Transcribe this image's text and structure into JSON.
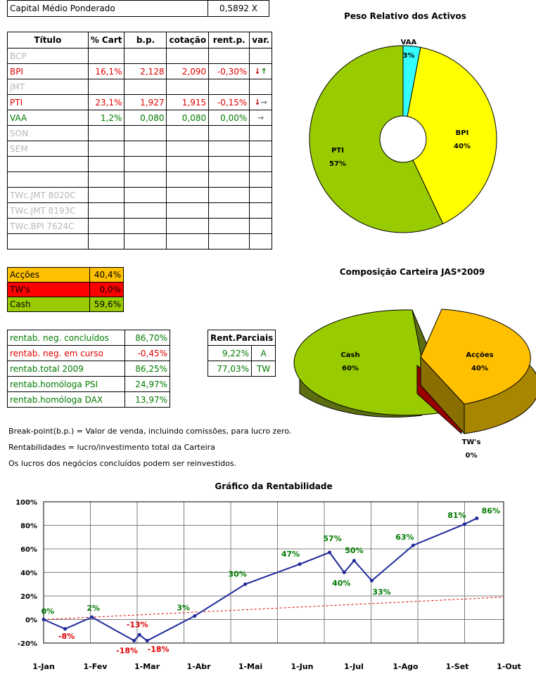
{
  "capital": {
    "label": "Capital Médio Ponderado",
    "value": "0,5892 X"
  },
  "table": {
    "headers": [
      "Título",
      "% Cart",
      "b.p.",
      "cotação",
      "rent.p.",
      "var."
    ],
    "rows": [
      {
        "name": "BCP",
        "cart": "",
        "bp": "",
        "cot": "",
        "rent": "",
        "var": "",
        "style": "grey"
      },
      {
        "name": "BPI",
        "cart": "16,1%",
        "bp": "2,128",
        "cot": "2,090",
        "rent": "-0,30%",
        "var": "↓↑",
        "style": "red"
      },
      {
        "name": "JMT",
        "cart": "",
        "bp": "",
        "cot": "",
        "rent": "",
        "var": "",
        "style": "grey"
      },
      {
        "name": "PTI",
        "cart": "23,1%",
        "bp": "1,927",
        "cot": "1,915",
        "rent": "-0,15%",
        "var": "↓→",
        "style": "red"
      },
      {
        "name": "VAA",
        "cart": "1,2%",
        "bp": "0,080",
        "cot": "0,080",
        "rent": "0,00%",
        "var": "→",
        "style": "green"
      },
      {
        "name": "SON",
        "cart": "",
        "bp": "",
        "cot": "",
        "rent": "",
        "var": "",
        "style": "grey"
      },
      {
        "name": "SEM",
        "cart": "",
        "bp": "",
        "cot": "",
        "rent": "",
        "var": "",
        "style": "grey"
      },
      {
        "name": "",
        "cart": "",
        "bp": "",
        "cot": "",
        "rent": "",
        "var": "",
        "style": "grey"
      },
      {
        "name": "",
        "cart": "",
        "bp": "",
        "cot": "",
        "rent": "",
        "var": "",
        "style": "grey"
      },
      {
        "name": "TWc.JMT 8020C",
        "cart": "",
        "bp": "",
        "cot": "",
        "rent": "",
        "var": "",
        "style": "grey"
      },
      {
        "name": "TWc.JMT 8193C",
        "cart": "",
        "bp": "",
        "cot": "",
        "rent": "",
        "var": "",
        "style": "grey"
      },
      {
        "name": "TWc.BPI 7624C",
        "cart": "",
        "bp": "",
        "cot": "",
        "rent": "",
        "var": "",
        "style": "grey"
      },
      {
        "name": "",
        "cart": "",
        "bp": "",
        "cot": "",
        "rent": "",
        "var": "",
        "style": "grey"
      }
    ]
  },
  "allocation": [
    {
      "label": "Acções",
      "value": "40,4%",
      "color": "#ffc000"
    },
    {
      "label": "TW's",
      "value": "0,0%",
      "color": "#ff0000"
    },
    {
      "label": "Cash",
      "value": "59,6%",
      "color": "#99cc00"
    }
  ],
  "rentab": [
    {
      "label": "rentab. neg. concluídos",
      "value": "86,70%",
      "style": "green"
    },
    {
      "label": "rentab. neg. em curso",
      "value": "-0,45%",
      "style": "red"
    },
    {
      "label": "rentab.total 2009",
      "value": "86,25%",
      "style": "green"
    },
    {
      "label": "rentab.homóloga PSI",
      "value": "24,97%",
      "style": "green"
    },
    {
      "label": "rentab.homóloga DAX",
      "value": "13,97%",
      "style": "green"
    }
  ],
  "parciais": {
    "header": "Rent.Parciais",
    "rows": [
      {
        "value": "9,22%",
        "tag": "A"
      },
      {
        "value": "77,03%",
        "tag": "TW"
      }
    ]
  },
  "notes": [
    "Break-point(b.p.) = Valor de venda, incluindo comissões, para lucro zero.",
    "Rentabilidades = lucro/investimento total da Carteira",
    "Os lucros dos negócios concluídos podem ser reinvestidos."
  ],
  "chart_data": [
    {
      "type": "pie",
      "title": "Peso Relativo dos Activos",
      "categories": [
        "VAA",
        "BPI",
        "PTI"
      ],
      "values": [
        3,
        40,
        57
      ],
      "labels": [
        "3%",
        "40%",
        "57%"
      ],
      "colors": [
        "#33ffff",
        "#ffff00",
        "#99cc00"
      ]
    },
    {
      "type": "pie",
      "title": "Composição Carteira JAS*2009",
      "categories": [
        "Acções",
        "TW's",
        "Cash"
      ],
      "values": [
        40,
        0,
        60
      ],
      "labels": [
        "40%",
        "0%",
        "60%"
      ],
      "colors": [
        "#ffc000",
        "#990000",
        "#99cc00"
      ]
    },
    {
      "type": "line",
      "title": "Gráfico da Rentabilidade",
      "xlabels": [
        "1-Jan",
        "1-Fev",
        "1-Mar",
        "1-Abr",
        "1-Mai",
        "1-Jun",
        "1-Jul",
        "1-Ago",
        "1-Set",
        "1-Out"
      ],
      "yticks": [
        "-20%",
        "0%",
        "20%",
        "40%",
        "60%",
        "80%",
        "100%"
      ],
      "ylim": [
        -20,
        100
      ],
      "series": [
        {
          "name": "rentabilidade",
          "points": [
            {
              "x": 0,
              "y": 0,
              "label": "0%"
            },
            {
              "x": 28,
              "y": -8,
              "label": "-8%"
            },
            {
              "x": 63,
              "y": 2,
              "label": "2%"
            },
            {
              "x": 118,
              "y": -18,
              "label": "-18%"
            },
            {
              "x": 125,
              "y": -13,
              "label": "-13%"
            },
            {
              "x": 135,
              "y": -18,
              "label": "-18%"
            },
            {
              "x": 197,
              "y": 3,
              "label": "3%"
            },
            {
              "x": 263,
              "y": 30,
              "label": "30%"
            },
            {
              "x": 334,
              "y": 47,
              "label": "47%"
            },
            {
              "x": 373,
              "y": 57,
              "label": "57%"
            },
            {
              "x": 392,
              "y": 40,
              "label": "40%"
            },
            {
              "x": 405,
              "y": 50,
              "label": "50%"
            },
            {
              "x": 428,
              "y": 33,
              "label": "33%"
            },
            {
              "x": 482,
              "y": 63,
              "label": "63%"
            },
            {
              "x": 549,
              "y": 81,
              "label": "81%"
            },
            {
              "x": 565,
              "y": 86,
              "label": "86%"
            }
          ]
        },
        {
          "name": "referência",
          "points": [
            {
              "x": 0,
              "y": 0
            },
            {
              "x": 600,
              "y": 19
            }
          ]
        }
      ]
    }
  ]
}
